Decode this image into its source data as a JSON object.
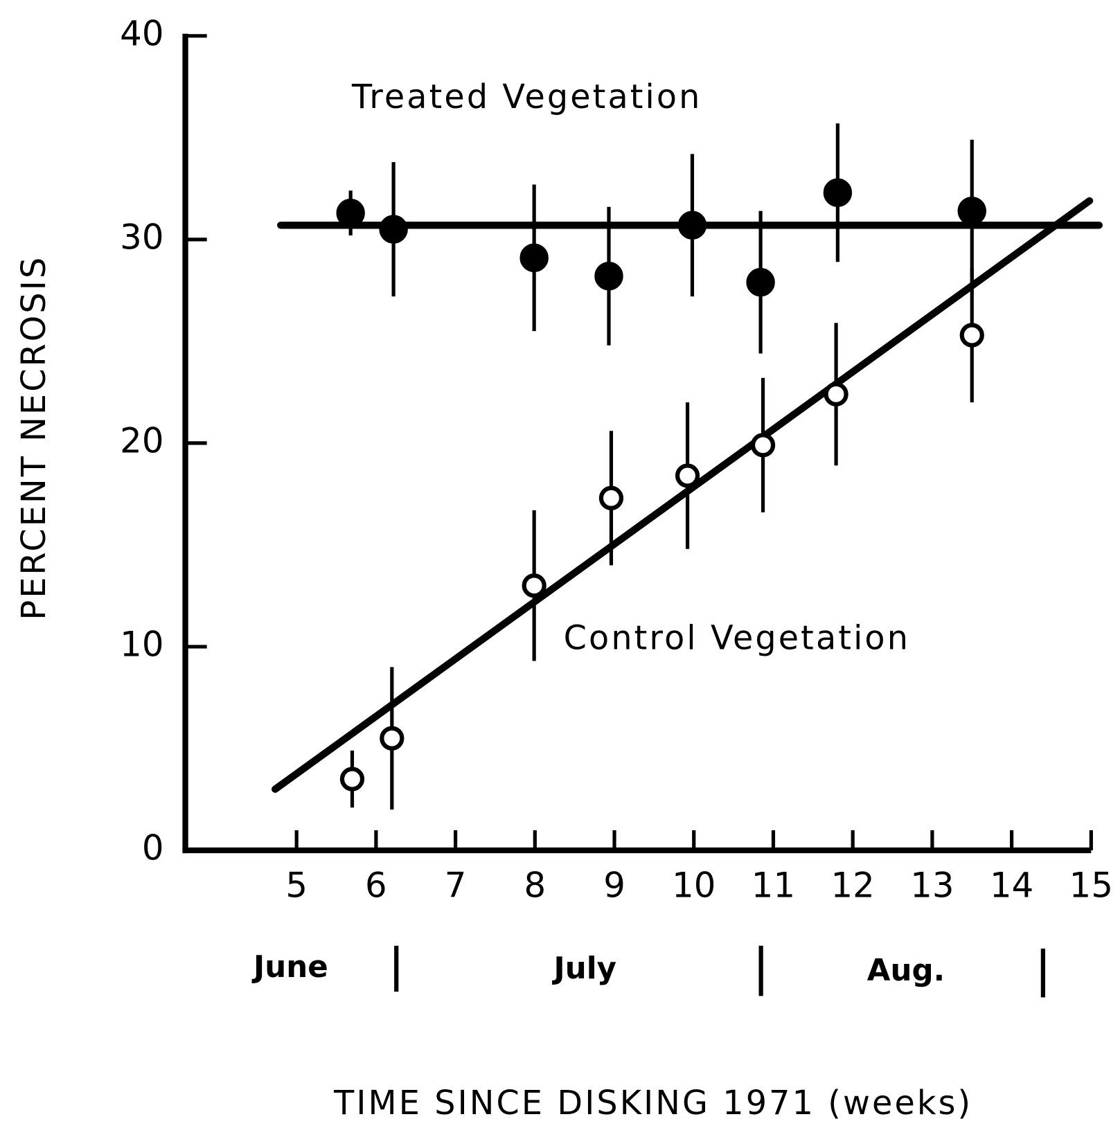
{
  "chart_data": {
    "type": "scatter",
    "xlabel": "TIME SINCE DISKING 1971 (weeks)",
    "ylabel": "PERCENT NECROSIS",
    "xlim": [
      3.6,
      15
    ],
    "ylim": [
      0,
      40
    ],
    "xticks": [
      5,
      6,
      7,
      8,
      9,
      10,
      11,
      12,
      13,
      14,
      15
    ],
    "yticks": [
      0,
      10,
      20,
      30,
      40
    ],
    "months": [
      "June",
      "July",
      "Aug."
    ],
    "series": [
      {
        "name": "Treated Vegetation",
        "color": "#000000",
        "marker": "filled",
        "x": [
          5.68,
          6.22,
          7.99,
          8.93,
          9.98,
          10.84,
          11.81,
          13.5
        ],
        "values": [
          31.3,
          30.5,
          29.1,
          28.2,
          30.7,
          27.9,
          32.3,
          31.4
        ],
        "errors": [
          1.1,
          3.3,
          3.6,
          3.4,
          3.5,
          3.5,
          3.4,
          3.5
        ],
        "fit": {
          "x": [
            4.8,
            15.1
          ],
          "y": [
            30.7,
            30.7
          ]
        }
      },
      {
        "name": "Control Vegetation",
        "color": "#000000",
        "marker": "open",
        "x": [
          5.7,
          6.2,
          7.99,
          8.96,
          9.92,
          10.87,
          11.79,
          13.5
        ],
        "values": [
          3.5,
          5.5,
          13.0,
          17.3,
          18.4,
          19.9,
          22.4,
          25.3
        ],
        "errors": [
          1.4,
          3.5,
          3.7,
          3.3,
          3.6,
          3.3,
          3.5,
          3.3
        ],
        "fit": {
          "x": [
            4.73,
            14.98
          ],
          "y": [
            3.0,
            31.9
          ]
        }
      }
    ]
  }
}
